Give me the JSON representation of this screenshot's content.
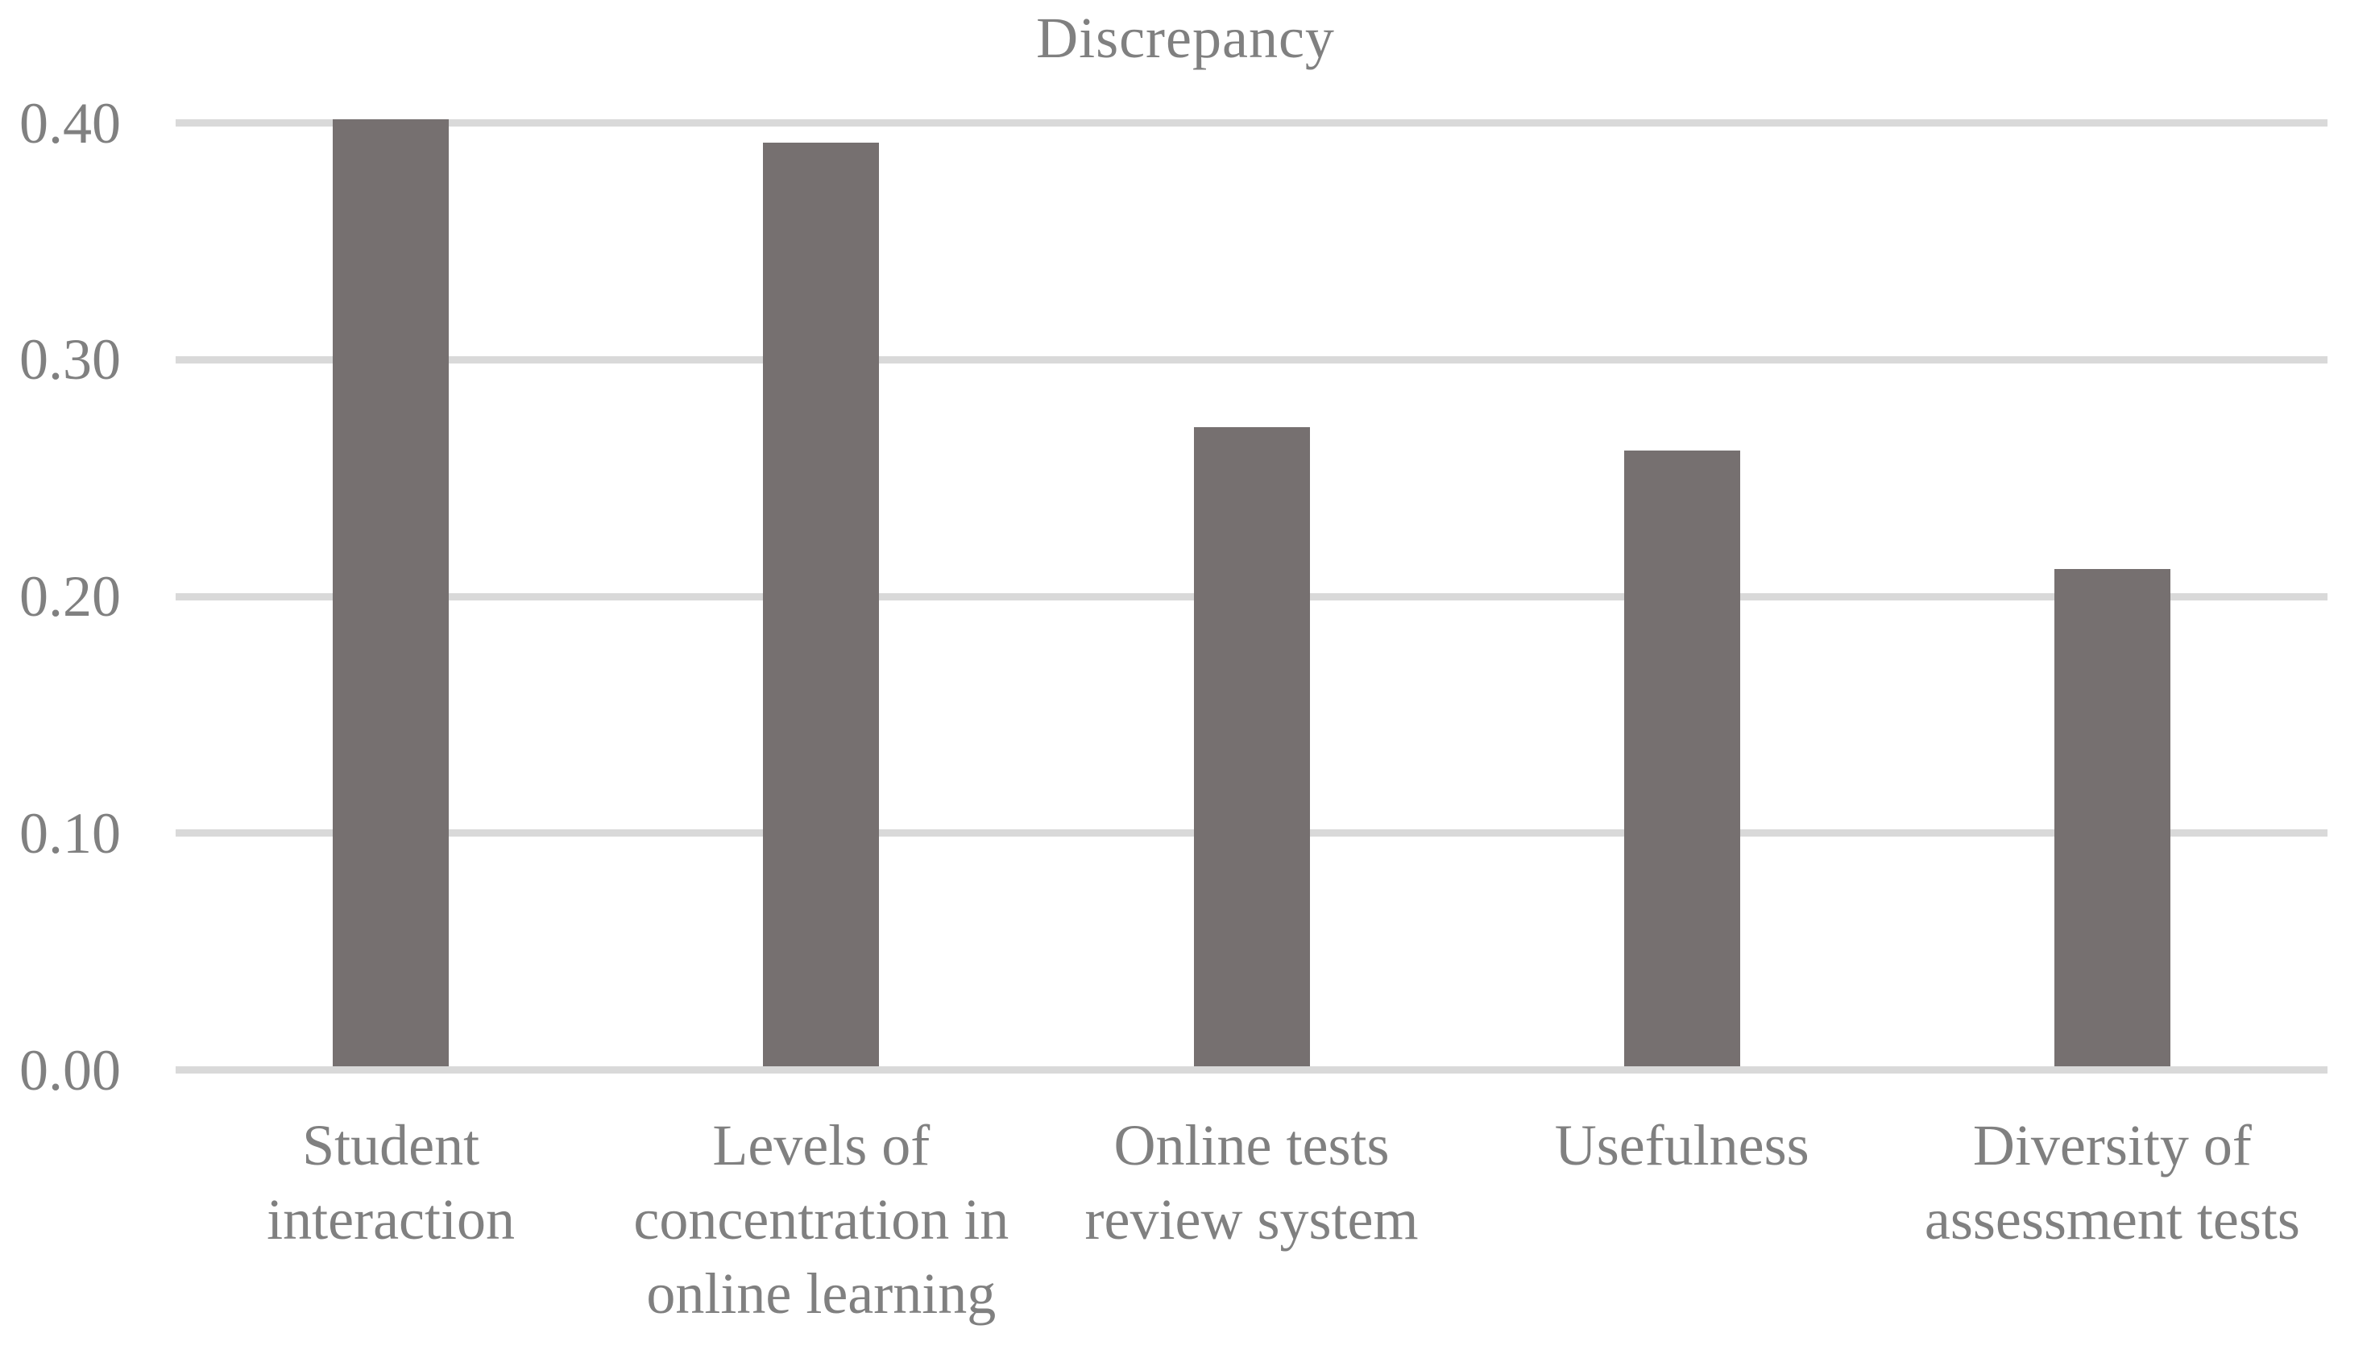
{
  "chart_data": {
    "type": "bar",
    "title": "Discrepancy",
    "categories": [
      "Student interaction",
      "Levels of concentration in online learning",
      "Online tests review system",
      "Usefulness",
      "Diversity of assessment tests"
    ],
    "values": [
      0.4,
      0.39,
      0.27,
      0.26,
      0.21
    ],
    "category_label_lines": [
      [
        "Student",
        "interaction"
      ],
      [
        "Levels of",
        "concentration in",
        "online learning"
      ],
      [
        "Online tests",
        "review system"
      ],
      [
        "Usefulness"
      ],
      [
        "Diversity of",
        "assessment tests"
      ]
    ],
    "xlabel": "",
    "ylabel": "",
    "ylim": [
      0,
      0.4
    ],
    "yticks": [
      0.4,
      0.3,
      0.2,
      0.1,
      0.0
    ],
    "ytick_labels": [
      "0.40",
      "0.30",
      "0.20",
      "0.10",
      "0.00"
    ],
    "grid": true,
    "legend": "none",
    "colors": {
      "bar": "#767070",
      "gridline": "#D9D9D9",
      "text": "#808080",
      "background": "#FFFFFF"
    }
  }
}
